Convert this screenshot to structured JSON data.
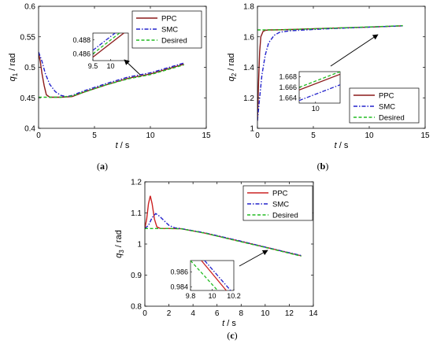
{
  "chart_data": [
    {
      "panel": "(a)",
      "caption_letter": "a",
      "type": "line",
      "ylabel_base": "q",
      "ylabel_sub": "1",
      "ylabel_unit": " / rad",
      "xlabel_var": "t",
      "xlabel_unit": " / s",
      "xlim": [
        0,
        15
      ],
      "ylim": [
        0.4,
        0.6
      ],
      "xticks": [
        "0",
        "5",
        "10",
        "15"
      ],
      "yticks": [
        "0.4",
        "0.45",
        "0.5",
        "0.55",
        "0.6"
      ],
      "grid": false,
      "legend_position": "top-right",
      "series": [
        {
          "name": "PPC",
          "color": "#8B1A1A",
          "dash": "solid",
          "x": [
            0,
            0.15,
            0.3,
            0.5,
            0.7,
            1,
            1.5,
            2,
            3,
            4,
            6,
            8,
            10,
            13
          ],
          "y": [
            0.523,
            0.51,
            0.49,
            0.47,
            0.455,
            0.451,
            0.451,
            0.451,
            0.452,
            0.459,
            0.471,
            0.482,
            0.489,
            0.505
          ]
        },
        {
          "name": "SMC",
          "color": "#2222CC",
          "dash": "dashdot",
          "x": [
            0,
            0.3,
            0.6,
            1,
            1.5,
            2,
            2.5,
            3,
            4,
            6,
            8,
            10,
            13
          ],
          "y": [
            0.525,
            0.51,
            0.49,
            0.472,
            0.46,
            0.454,
            0.452,
            0.454,
            0.461,
            0.473,
            0.484,
            0.491,
            0.507
          ]
        },
        {
          "name": "Desired",
          "color": "#22BB22",
          "dash": "dash",
          "x": [
            0,
            1,
            2,
            3,
            4,
            6,
            8,
            10,
            13
          ],
          "y": [
            0.451,
            0.451,
            0.451,
            0.453,
            0.459,
            0.471,
            0.481,
            0.488,
            0.504
          ]
        }
      ],
      "inset": {
        "xlim": [
          9.5,
          10.5
        ],
        "ylim": [
          0.485,
          0.489
        ],
        "xticks": [
          "9.5",
          "10"
        ],
        "yticks": [
          "0.486",
          "0.488"
        ],
        "series": [
          {
            "name": "PPC",
            "x": [
              9.5,
              10.5
            ],
            "y": [
              0.4855,
              0.4895
            ]
          },
          {
            "name": "SMC",
            "x": [
              9.5,
              10.5
            ],
            "y": [
              0.4865,
              0.4905
            ]
          },
          {
            "name": "Desired",
            "x": [
              9.5,
              10.5
            ],
            "y": [
              0.486,
              0.49
            ]
          }
        ]
      }
    },
    {
      "panel": "(b)",
      "caption_letter": "b",
      "type": "line",
      "ylabel_base": "q",
      "ylabel_sub": "2",
      "ylabel_unit": " / rad",
      "xlabel_var": "t",
      "xlabel_unit": " / s",
      "xlim": [
        0,
        15
      ],
      "ylim": [
        1,
        1.8
      ],
      "xticks": [
        "0",
        "5",
        "10",
        "15"
      ],
      "yticks": [
        "1",
        "1.2",
        "1.4",
        "1.6",
        "1.8"
      ],
      "grid": false,
      "legend_position": "bottom-right",
      "series": [
        {
          "name": "PPC",
          "color": "#8B1A1A",
          "dash": "solid",
          "x": [
            0,
            0.1,
            0.2,
            0.3,
            0.5,
            0.7,
            1,
            1.5,
            3,
            6,
            10,
            13
          ],
          "y": [
            1.05,
            1.3,
            1.5,
            1.6,
            1.635,
            1.642,
            1.645,
            1.645,
            1.648,
            1.655,
            1.664,
            1.672
          ]
        },
        {
          "name": "SMC",
          "color": "#2222CC",
          "dash": "dashdot",
          "x": [
            0,
            0.2,
            0.4,
            0.7,
            1,
            1.5,
            2,
            3,
            6,
            10,
            13
          ],
          "y": [
            1.05,
            1.2,
            1.35,
            1.48,
            1.56,
            1.61,
            1.63,
            1.64,
            1.652,
            1.664,
            1.672
          ]
        },
        {
          "name": "Desired",
          "color": "#22BB22",
          "dash": "dash",
          "x": [
            0,
            1,
            3,
            6,
            10,
            13
          ],
          "y": [
            1.645,
            1.645,
            1.648,
            1.655,
            1.665,
            1.673
          ]
        }
      ],
      "inset": {
        "xlim": [
          9.6,
          10.6
        ],
        "ylim": [
          1.663,
          1.669
        ],
        "xticks": [
          "10"
        ],
        "yticks": [
          "1.664",
          "1.666",
          "1.668"
        ],
        "series": [
          {
            "name": "PPC",
            "x": [
              9.6,
              10.6
            ],
            "y": [
              1.6655,
              1.6685
            ]
          },
          {
            "name": "SMC",
            "x": [
              9.6,
              10.6
            ],
            "y": [
              1.6635,
              1.6665
            ]
          },
          {
            "name": "Desired",
            "x": [
              9.6,
              10.6
            ],
            "y": [
              1.666,
              1.669
            ]
          }
        ]
      }
    },
    {
      "panel": "(c)",
      "caption_letter": "c",
      "type": "line",
      "ylabel_base": "q",
      "ylabel_sub": "3",
      "ylabel_unit": " / rad",
      "xlabel_var": "t",
      "xlabel_unit": " / s",
      "xlim": [
        0,
        14
      ],
      "ylim": [
        0.8,
        1.2
      ],
      "xticks": [
        "0",
        "2",
        "4",
        "6",
        "8",
        "10",
        "12",
        "14"
      ],
      "yticks": [
        "0.8",
        "0.9",
        "1",
        "1.1",
        "1.2"
      ],
      "grid": false,
      "legend_position": "top-right",
      "series": [
        {
          "name": "PPC",
          "color": "#CC2222",
          "dash": "solid",
          "x": [
            0,
            0.15,
            0.3,
            0.45,
            0.6,
            0.8,
            1,
            1.3,
            2,
            3,
            5,
            8,
            10,
            13
          ],
          "y": [
            1.05,
            1.08,
            1.13,
            1.155,
            1.13,
            1.08,
            1.055,
            1.05,
            1.05,
            1.049,
            1.035,
            1.008,
            0.99,
            0.962
          ]
        },
        {
          "name": "SMC",
          "color": "#2222CC",
          "dash": "dashdot",
          "x": [
            0,
            0.3,
            0.6,
            0.9,
            1.2,
            1.6,
            2,
            2.5,
            3,
            5,
            8,
            10,
            13
          ],
          "y": [
            1.05,
            1.06,
            1.085,
            1.098,
            1.09,
            1.075,
            1.06,
            1.052,
            1.05,
            1.036,
            1.009,
            0.99,
            0.963
          ]
        },
        {
          "name": "Desired",
          "color": "#22BB22",
          "dash": "dash",
          "x": [
            0,
            1,
            2,
            3,
            5,
            8,
            10,
            13
          ],
          "y": [
            1.05,
            1.05,
            1.05,
            1.049,
            1.035,
            1.007,
            0.989,
            0.961
          ]
        }
      ],
      "inset": {
        "xlim": [
          9.8,
          10.2
        ],
        "ylim": [
          0.9835,
          0.9875
        ],
        "xticks": [
          "9.8",
          "10",
          "10.2"
        ],
        "yticks": [
          "0.984",
          "0.986"
        ],
        "series": [
          {
            "name": "PPC",
            "x": [
              9.9,
              10.13
            ],
            "y": [
              0.9875,
              0.9835
            ]
          },
          {
            "name": "SMC",
            "x": [
              9.93,
              10.17
            ],
            "y": [
              0.9875,
              0.9835
            ]
          },
          {
            "name": "Desired",
            "x": [
              9.8,
              10.05
            ],
            "y": [
              0.9875,
              0.9835
            ]
          }
        ]
      }
    }
  ]
}
